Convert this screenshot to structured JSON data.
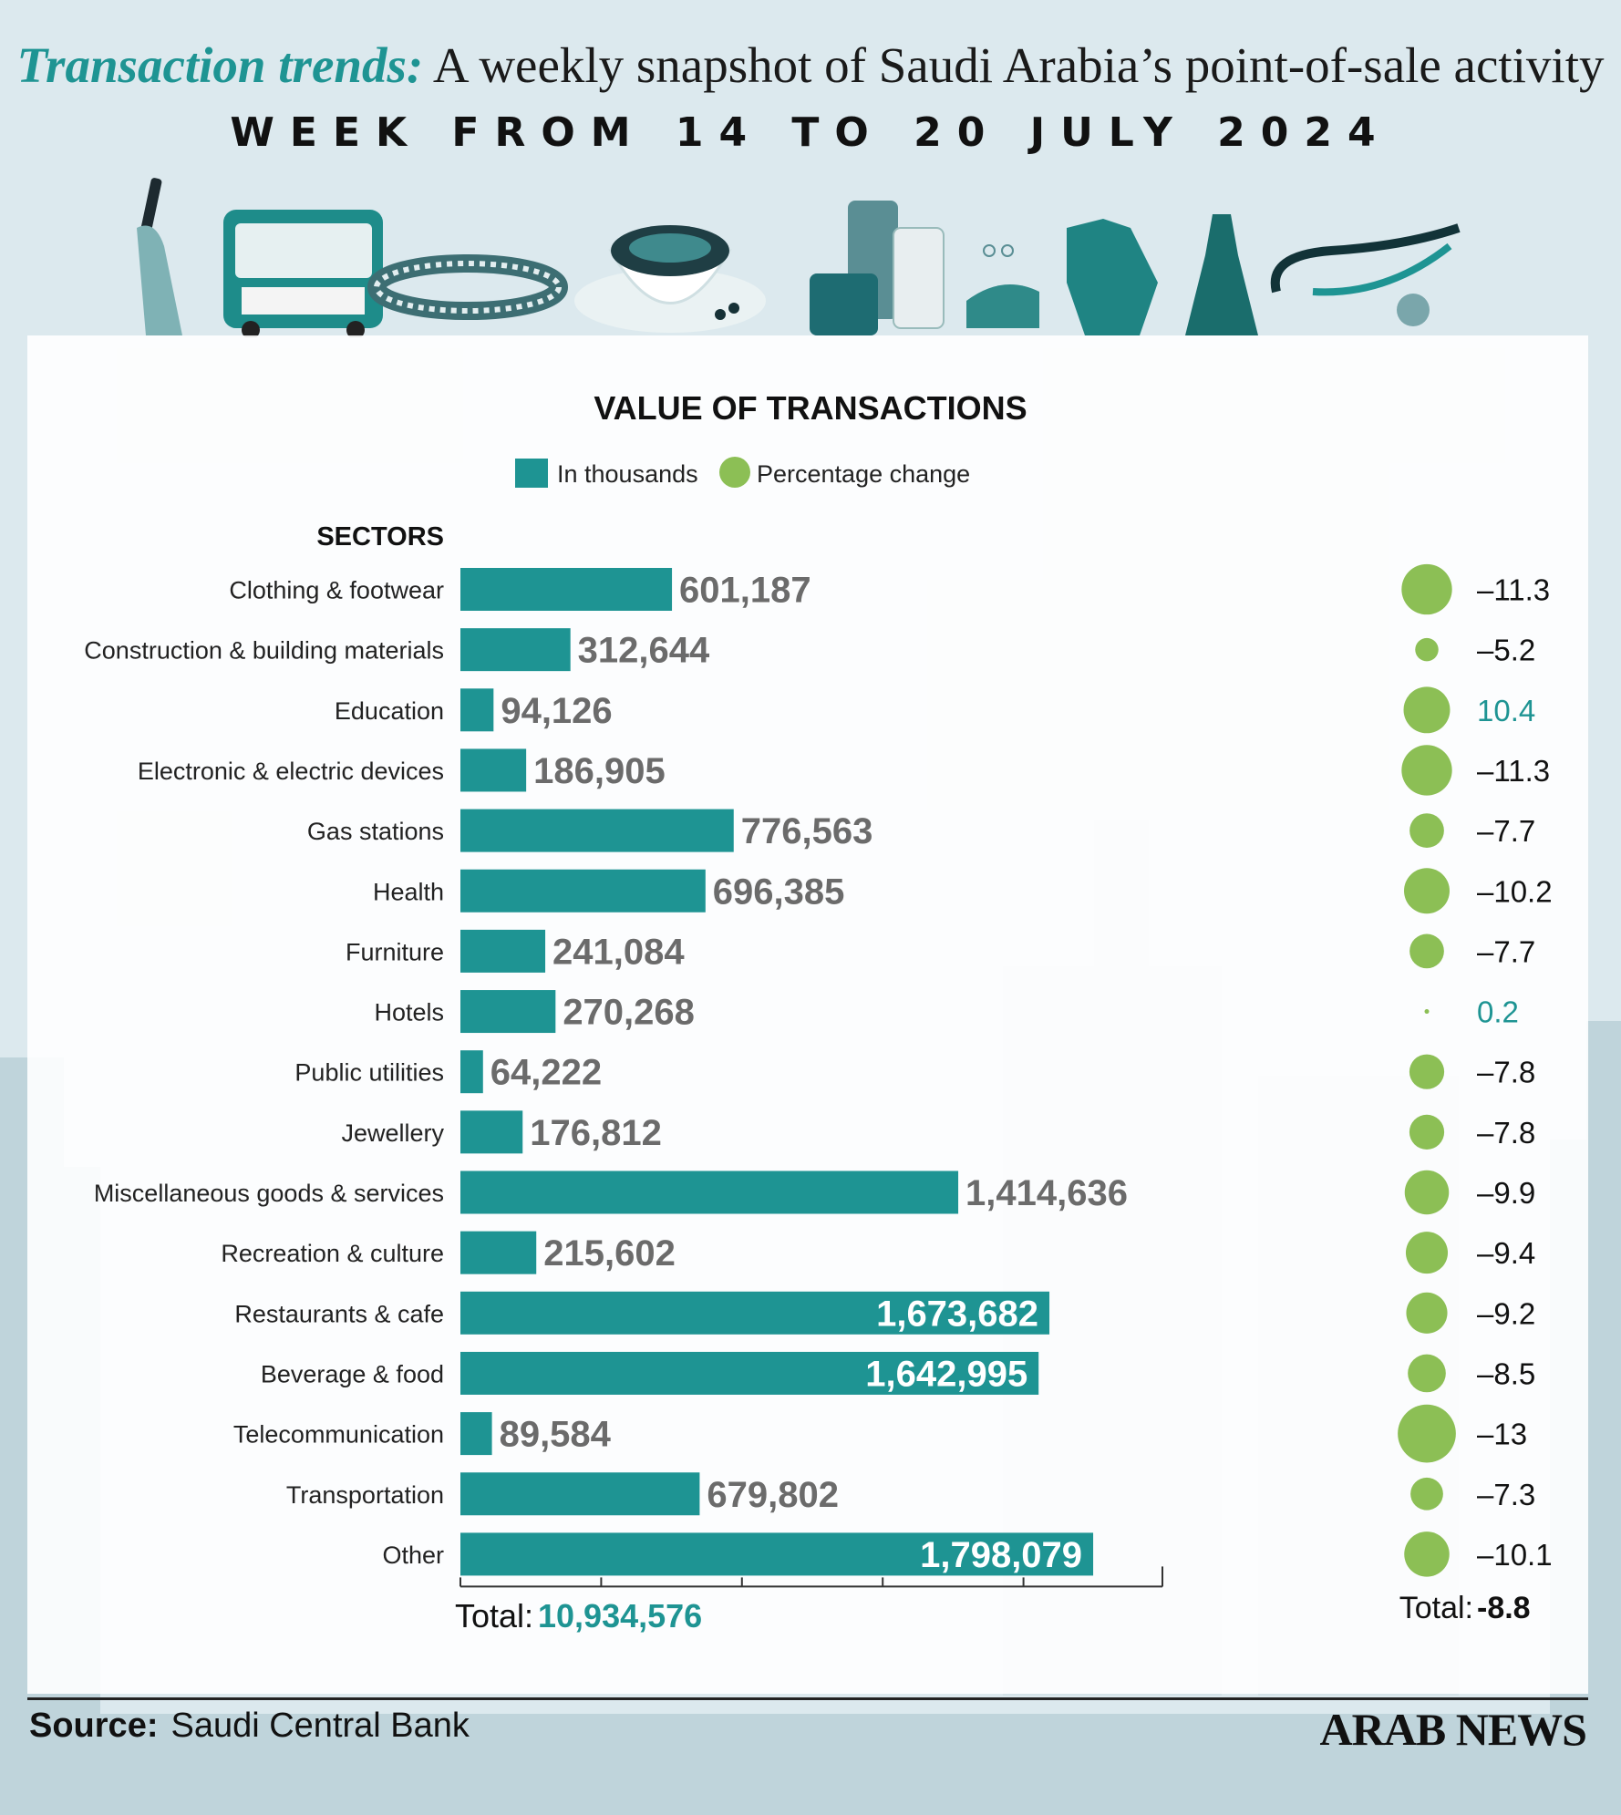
{
  "header": {
    "title_lead": "Transaction trends:",
    "title_rest": " A weekly snapshot of Saudi Arabia’s point-of-sale activity",
    "week": "WEEK FROM 14 TO 20 JULY  2024"
  },
  "colors": {
    "bar": "#1e9493",
    "bubble": "#8cbf55",
    "positive_text": "#1e9493",
    "value_text": "#6b6b6b"
  },
  "icons": [
    "phone-hand-icon",
    "bus-icon",
    "bracelet-icon",
    "coffee-cup-icon",
    "luggage-icon",
    "sandals-icon",
    "blouse-icon",
    "dress-icon",
    "stethoscope-icon"
  ],
  "chart_data": {
    "type": "bar",
    "orientation": "horizontal",
    "title": "VALUE OF TRANSACTIONS",
    "legend": {
      "bar_label": "In thousands",
      "bubble_label": "Percentage change",
      "placement": "top-center"
    },
    "category_header": "SECTORS",
    "categories": [
      "Clothing & footwear",
      "Construction & building materials",
      "Education",
      "Electronic & electric devices",
      "Gas stations",
      "Health",
      "Furniture",
      "Hotels",
      "Public utilities",
      "Jewellery",
      "Miscellaneous goods & services",
      "Recreation & culture",
      "Restaurants & cafe",
      "Beverage & food",
      "Telecommunication",
      "Transportation",
      "Other"
    ],
    "series": [
      {
        "name": "In thousands",
        "values": [
          601187,
          312644,
          94126,
          186905,
          776563,
          696385,
          241084,
          270268,
          64222,
          176812,
          1414636,
          215602,
          1673682,
          1642995,
          89584,
          679802,
          1798079
        ],
        "labels": [
          "601,187",
          "312,644",
          "94,126",
          "186,905",
          "776,563",
          "696,385",
          "241,084",
          "270,268",
          "64,222",
          "176,812",
          "1,414,636",
          "215,602",
          "1,673,682",
          "1,642,995",
          "89,584",
          "679,802",
          "1,798,079"
        ]
      },
      {
        "name": "Percentage change",
        "values": [
          -11.3,
          -5.2,
          10.4,
          -11.3,
          -7.7,
          -10.2,
          -7.7,
          0.2,
          -7.8,
          -7.8,
          -9.9,
          -9.4,
          -9.2,
          -8.5,
          -13,
          -7.3,
          -10.1
        ],
        "labels": [
          "–11.3",
          "–5.2",
          "10.4",
          "–11.3",
          "–7.7",
          "–10.2",
          "–7.7",
          "0.2",
          "–7.8",
          "–7.8",
          "–9.9",
          "–9.4",
          "–9.2",
          "–8.5",
          "–13",
          "–7.3",
          "–10.1"
        ]
      }
    ],
    "xlim": [
      0,
      2000000
    ],
    "grid": false,
    "total_value": {
      "label": "Total:",
      "value": "10,934,576"
    },
    "total_change": {
      "label": "Total:",
      "value": "-8.8"
    }
  },
  "footer": {
    "source_label": "Source",
    "source_colon": ":",
    "source_value": "Saudi Central Bank",
    "brand": "ARAB NEWS"
  }
}
